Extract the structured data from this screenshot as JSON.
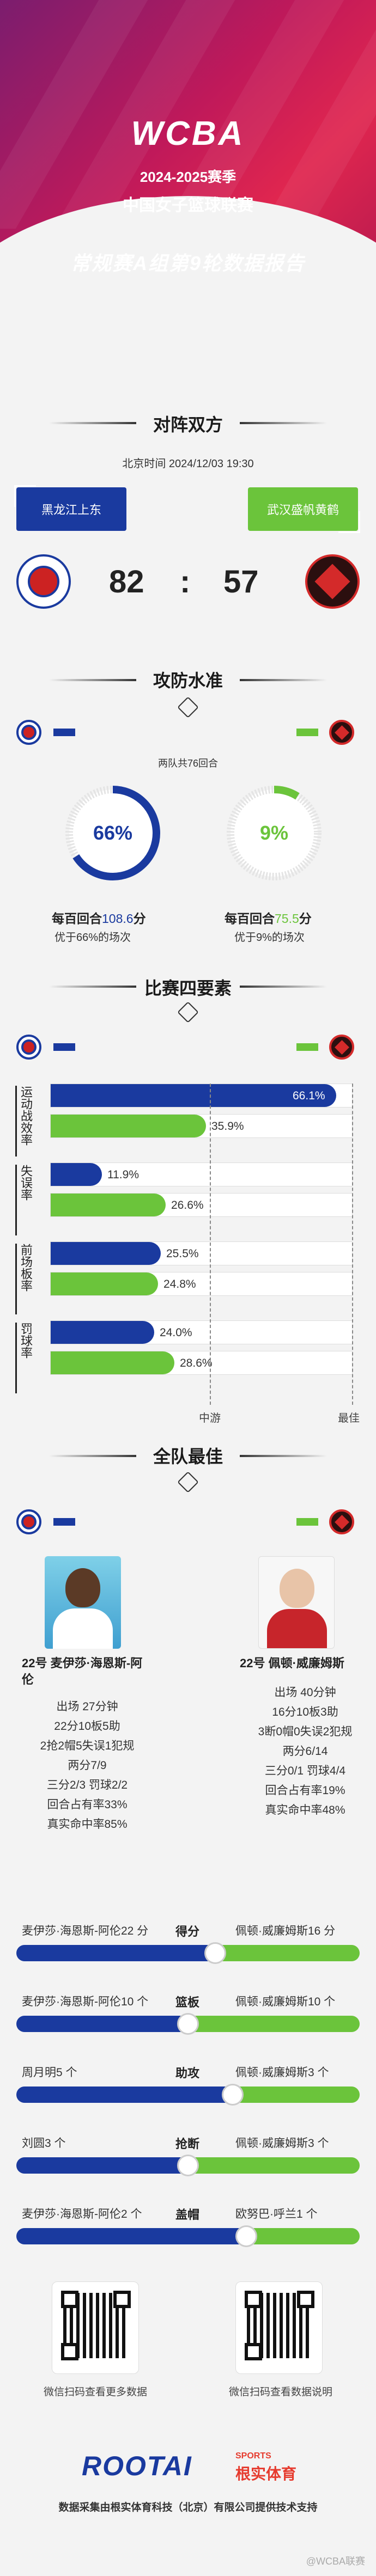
{
  "header": {
    "logo": "WCBA",
    "season": "2024-2025赛季",
    "league": "中国女子篮球联赛",
    "report_title": "常规赛A组第9轮数据报告"
  },
  "matchup": {
    "section_title": "对阵双方",
    "datetime": "北京时间 2024/12/03 19:30",
    "home_team": "黑龙江上东",
    "away_team": "武汉盛帆黄鹤",
    "home_score": "82",
    "colon": ":",
    "away_score": "57"
  },
  "offense": {
    "section_title": "攻防水准",
    "possessions": "两队共76回合",
    "home": {
      "pct_label": "66%",
      "pct": 66,
      "per100_prefix": "每百回合",
      "per100_value": "108.6",
      "per100_suffix": "分",
      "better": "优于66%的场次"
    },
    "away": {
      "pct_label": "9%",
      "pct": 9,
      "per100_prefix": "每百回合",
      "per100_value": "75.5",
      "per100_suffix": "分",
      "better": "优于9%的场次"
    }
  },
  "four_factors": {
    "section_title": "比赛四要素",
    "axis": {
      "mid": "中游",
      "best": "最佳"
    },
    "factors": [
      {
        "label": "运动战效率",
        "home": 66.1,
        "home_label": "66.1%",
        "away": 35.9,
        "away_label": "35.9%"
      },
      {
        "label": "失误率",
        "home": 11.9,
        "home_label": "11.9%",
        "away": 26.6,
        "away_label": "26.6%"
      },
      {
        "label": "前场板率",
        "home": 25.5,
        "home_label": "25.5%",
        "away": 24.8,
        "away_label": "24.8%"
      },
      {
        "label": "罚球率",
        "home": 24.0,
        "home_label": "24.0%",
        "away": 28.6,
        "away_label": "28.6%"
      }
    ]
  },
  "best": {
    "section_title": "全队最佳",
    "home_player": {
      "name": "22号 麦伊莎·海恩斯-阿伦",
      "stats": [
        "出场 27分钟",
        "22分10板5助",
        "2抢2帽5失误1犯规",
        "两分7/9",
        "三分2/3 罚球2/2",
        "回合占有率33%",
        "真实命中率85%"
      ]
    },
    "away_player": {
      "name": "22号 佩顿·威廉姆斯",
      "stats": [
        "出场 40分钟",
        "16分10板3助",
        "3断0帽0失误2犯规",
        "两分6/14",
        "三分0/1 罚球4/4",
        "回合占有率19%",
        "真实命中率48%"
      ]
    },
    "comparisons": [
      {
        "category": "得分",
        "home_text": "麦伊莎·海恩斯-阿伦22 分",
        "away_text": "佩顿·威廉姆斯16 分",
        "home_share": 58
      },
      {
        "category": "篮板",
        "home_text": "麦伊莎·海恩斯-阿伦10 个",
        "away_text": "佩顿·威廉姆斯10 个",
        "home_share": 50
      },
      {
        "category": "助攻",
        "home_text": "周月明5 个",
        "away_text": "佩顿·威廉姆斯3 个",
        "home_share": 63
      },
      {
        "category": "抢断",
        "home_text": "刘圆3 个",
        "away_text": "佩顿·威廉姆斯3 个",
        "home_share": 50
      },
      {
        "category": "盖帽",
        "home_text": "麦伊莎·海恩斯-阿伦2 个",
        "away_text": "欧努巴·呼兰1 个",
        "home_share": 67
      }
    ]
  },
  "footer": {
    "qr_left_caption": "微信扫码查看更多数据",
    "qr_right_caption": "微信扫码查看数据说明",
    "brand": "ROOTAI",
    "brand_sports": "SPORTS",
    "brand_cn": "根实体育",
    "note": "数据采集由根实体育科技（北京）有限公司提供技术支持",
    "watermark": "@WCBA联赛"
  },
  "colors": {
    "home": "#1a3a9f",
    "away": "#6bc43b",
    "header": "#c0195a"
  }
}
